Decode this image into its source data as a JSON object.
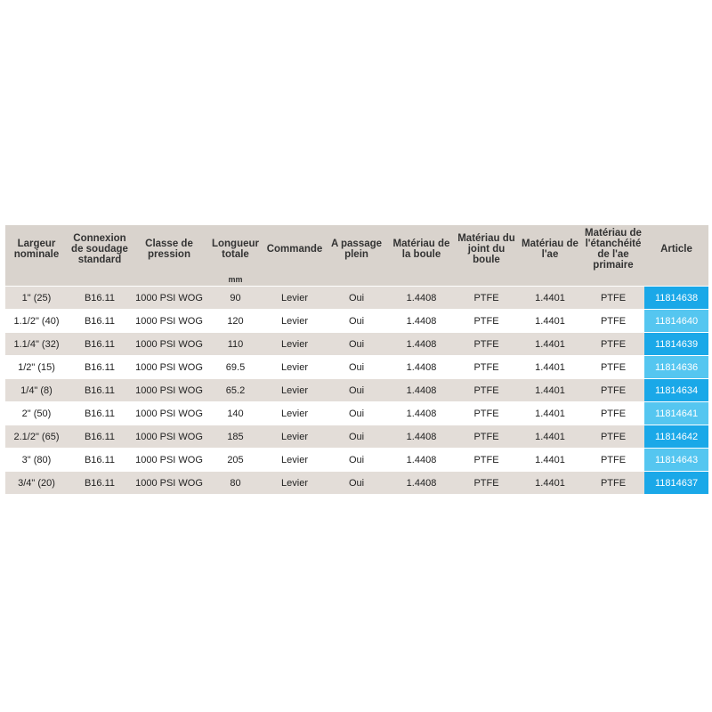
{
  "headers": [
    "Largeur nominale",
    "Connexion de soudage standard",
    "Classe de pression",
    "Longueur totale",
    "Commande",
    "A passage plein",
    "Matériau de la boule",
    "Matériau du joint du boule",
    "Matériau de l'ae",
    "Matériau de l'étanchéité de l'ae primaire",
    "Article"
  ],
  "unit_row": {
    "longueur_unit": "mm"
  },
  "rows": [
    {
      "largeur": "1\" (25)",
      "connexion": "B16.11",
      "pression": "1000 PSI WOG",
      "longueur": "90",
      "commande": "Levier",
      "passage": "Oui",
      "boule": "1.4408",
      "joint": "PTFE",
      "ae": "1.4401",
      "etancheite": "PTFE",
      "article": "11814638"
    },
    {
      "largeur": "1.1/2\" (40)",
      "connexion": "B16.11",
      "pression": "1000 PSI WOG",
      "longueur": "120",
      "commande": "Levier",
      "passage": "Oui",
      "boule": "1.4408",
      "joint": "PTFE",
      "ae": "1.4401",
      "etancheite": "PTFE",
      "article": "11814640"
    },
    {
      "largeur": "1.1/4\" (32)",
      "connexion": "B16.11",
      "pression": "1000 PSI WOG",
      "longueur": "110",
      "commande": "Levier",
      "passage": "Oui",
      "boule": "1.4408",
      "joint": "PTFE",
      "ae": "1.4401",
      "etancheite": "PTFE",
      "article": "11814639"
    },
    {
      "largeur": "1/2\" (15)",
      "connexion": "B16.11",
      "pression": "1000 PSI WOG",
      "longueur": "69.5",
      "commande": "Levier",
      "passage": "Oui",
      "boule": "1.4408",
      "joint": "PTFE",
      "ae": "1.4401",
      "etancheite": "PTFE",
      "article": "11814636"
    },
    {
      "largeur": "1/4\" (8)",
      "connexion": "B16.11",
      "pression": "1000 PSI WOG",
      "longueur": "65.2",
      "commande": "Levier",
      "passage": "Oui",
      "boule": "1.4408",
      "joint": "PTFE",
      "ae": "1.4401",
      "etancheite": "PTFE",
      "article": "11814634"
    },
    {
      "largeur": "2\" (50)",
      "connexion": "B16.11",
      "pression": "1000 PSI WOG",
      "longueur": "140",
      "commande": "Levier",
      "passage": "Oui",
      "boule": "1.4408",
      "joint": "PTFE",
      "ae": "1.4401",
      "etancheite": "PTFE",
      "article": "11814641"
    },
    {
      "largeur": "2.1/2\" (65)",
      "connexion": "B16.11",
      "pression": "1000 PSI WOG",
      "longueur": "185",
      "commande": "Levier",
      "passage": "Oui",
      "boule": "1.4408",
      "joint": "PTFE",
      "ae": "1.4401",
      "etancheite": "PTFE",
      "article": "11814642"
    },
    {
      "largeur": "3\" (80)",
      "connexion": "B16.11",
      "pression": "1000 PSI WOG",
      "longueur": "205",
      "commande": "Levier",
      "passage": "Oui",
      "boule": "1.4408",
      "joint": "PTFE",
      "ae": "1.4401",
      "etancheite": "PTFE",
      "article": "11814643"
    },
    {
      "largeur": "3/4\" (20)",
      "connexion": "B16.11",
      "pression": "1000 PSI WOG",
      "longueur": "80",
      "commande": "Levier",
      "passage": "Oui",
      "boule": "1.4408",
      "joint": "PTFE",
      "ae": "1.4401",
      "etancheite": "PTFE",
      "article": "11814637"
    }
  ],
  "colors": {
    "header_bg": "#d9d3cd",
    "row_shade": "#e3ddd8",
    "article_dark": "#1aa8e8",
    "article_light": "#55c6f0"
  }
}
